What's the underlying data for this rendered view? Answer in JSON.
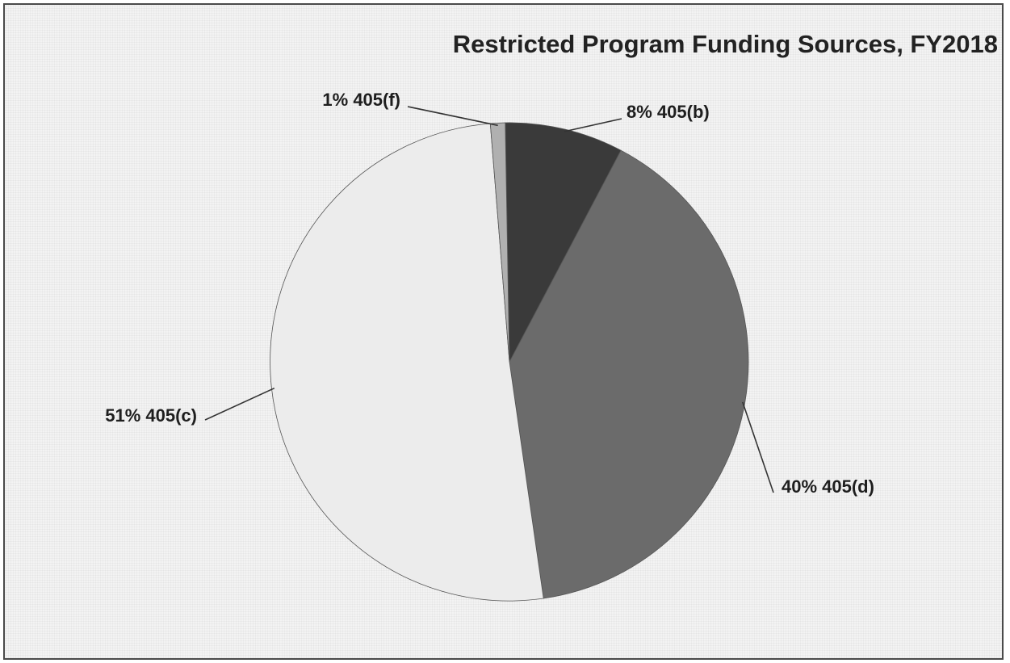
{
  "chart_data": {
    "type": "pie",
    "title": "Restricted Program Funding Sources, FY2018",
    "slices": [
      {
        "label": "405(b)",
        "percent_label": "8%",
        "value": 8,
        "color": "#3a3a3a"
      },
      {
        "label": "405(d)",
        "percent_label": "40%",
        "value": 40,
        "color": "#6b6b6b"
      },
      {
        "label": "405(c)",
        "percent_label": "51%",
        "value": 51,
        "color": "#ececec"
      },
      {
        "label": "405(f)",
        "percent_label": "1%",
        "value": 1,
        "color": "#b0b0b0"
      }
    ]
  }
}
